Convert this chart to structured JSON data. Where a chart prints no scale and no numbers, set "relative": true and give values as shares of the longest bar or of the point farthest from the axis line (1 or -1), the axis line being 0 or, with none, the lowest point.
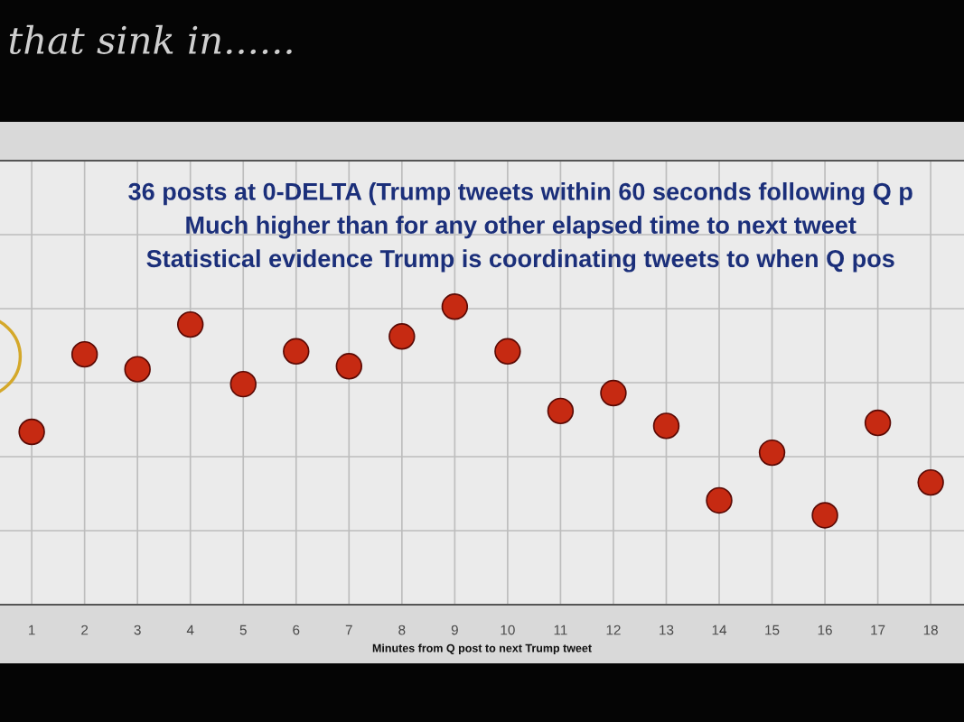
{
  "chart_data": {
    "type": "scatter",
    "title": "36 posts at 0-DELTA (Trump tweets within 60 seconds following Q p\nMuch higher than for any other elapsed time to next tweet\nStatistical evidence Trump is coordinating tweets to when Q pos",
    "xlabel": "Minutes from Q post to next Trump tweet",
    "annotations": [
      "that sink in......"
    ],
    "x": [
      1,
      2,
      3,
      4,
      5,
      6,
      7,
      8,
      9,
      10,
      11,
      12,
      13,
      14,
      15,
      16,
      17,
      18
    ],
    "values": [
      0.58,
      0.84,
      0.79,
      0.94,
      0.74,
      0.85,
      0.8,
      0.9,
      1,
      0.85,
      0.65,
      0.71,
      0.6,
      0.35,
      0.51,
      0.3,
      0.61,
      0.41
    ],
    "color": "#c62a12",
    "relative": true,
    "xlim": [
      0.4,
      18.63
    ],
    "xticks": [
      1,
      2,
      3,
      4,
      5,
      6,
      7,
      8,
      9,
      10,
      11,
      12,
      13,
      14,
      15,
      16,
      17,
      18
    ],
    "grid": true,
    "marker": "circle"
  }
}
